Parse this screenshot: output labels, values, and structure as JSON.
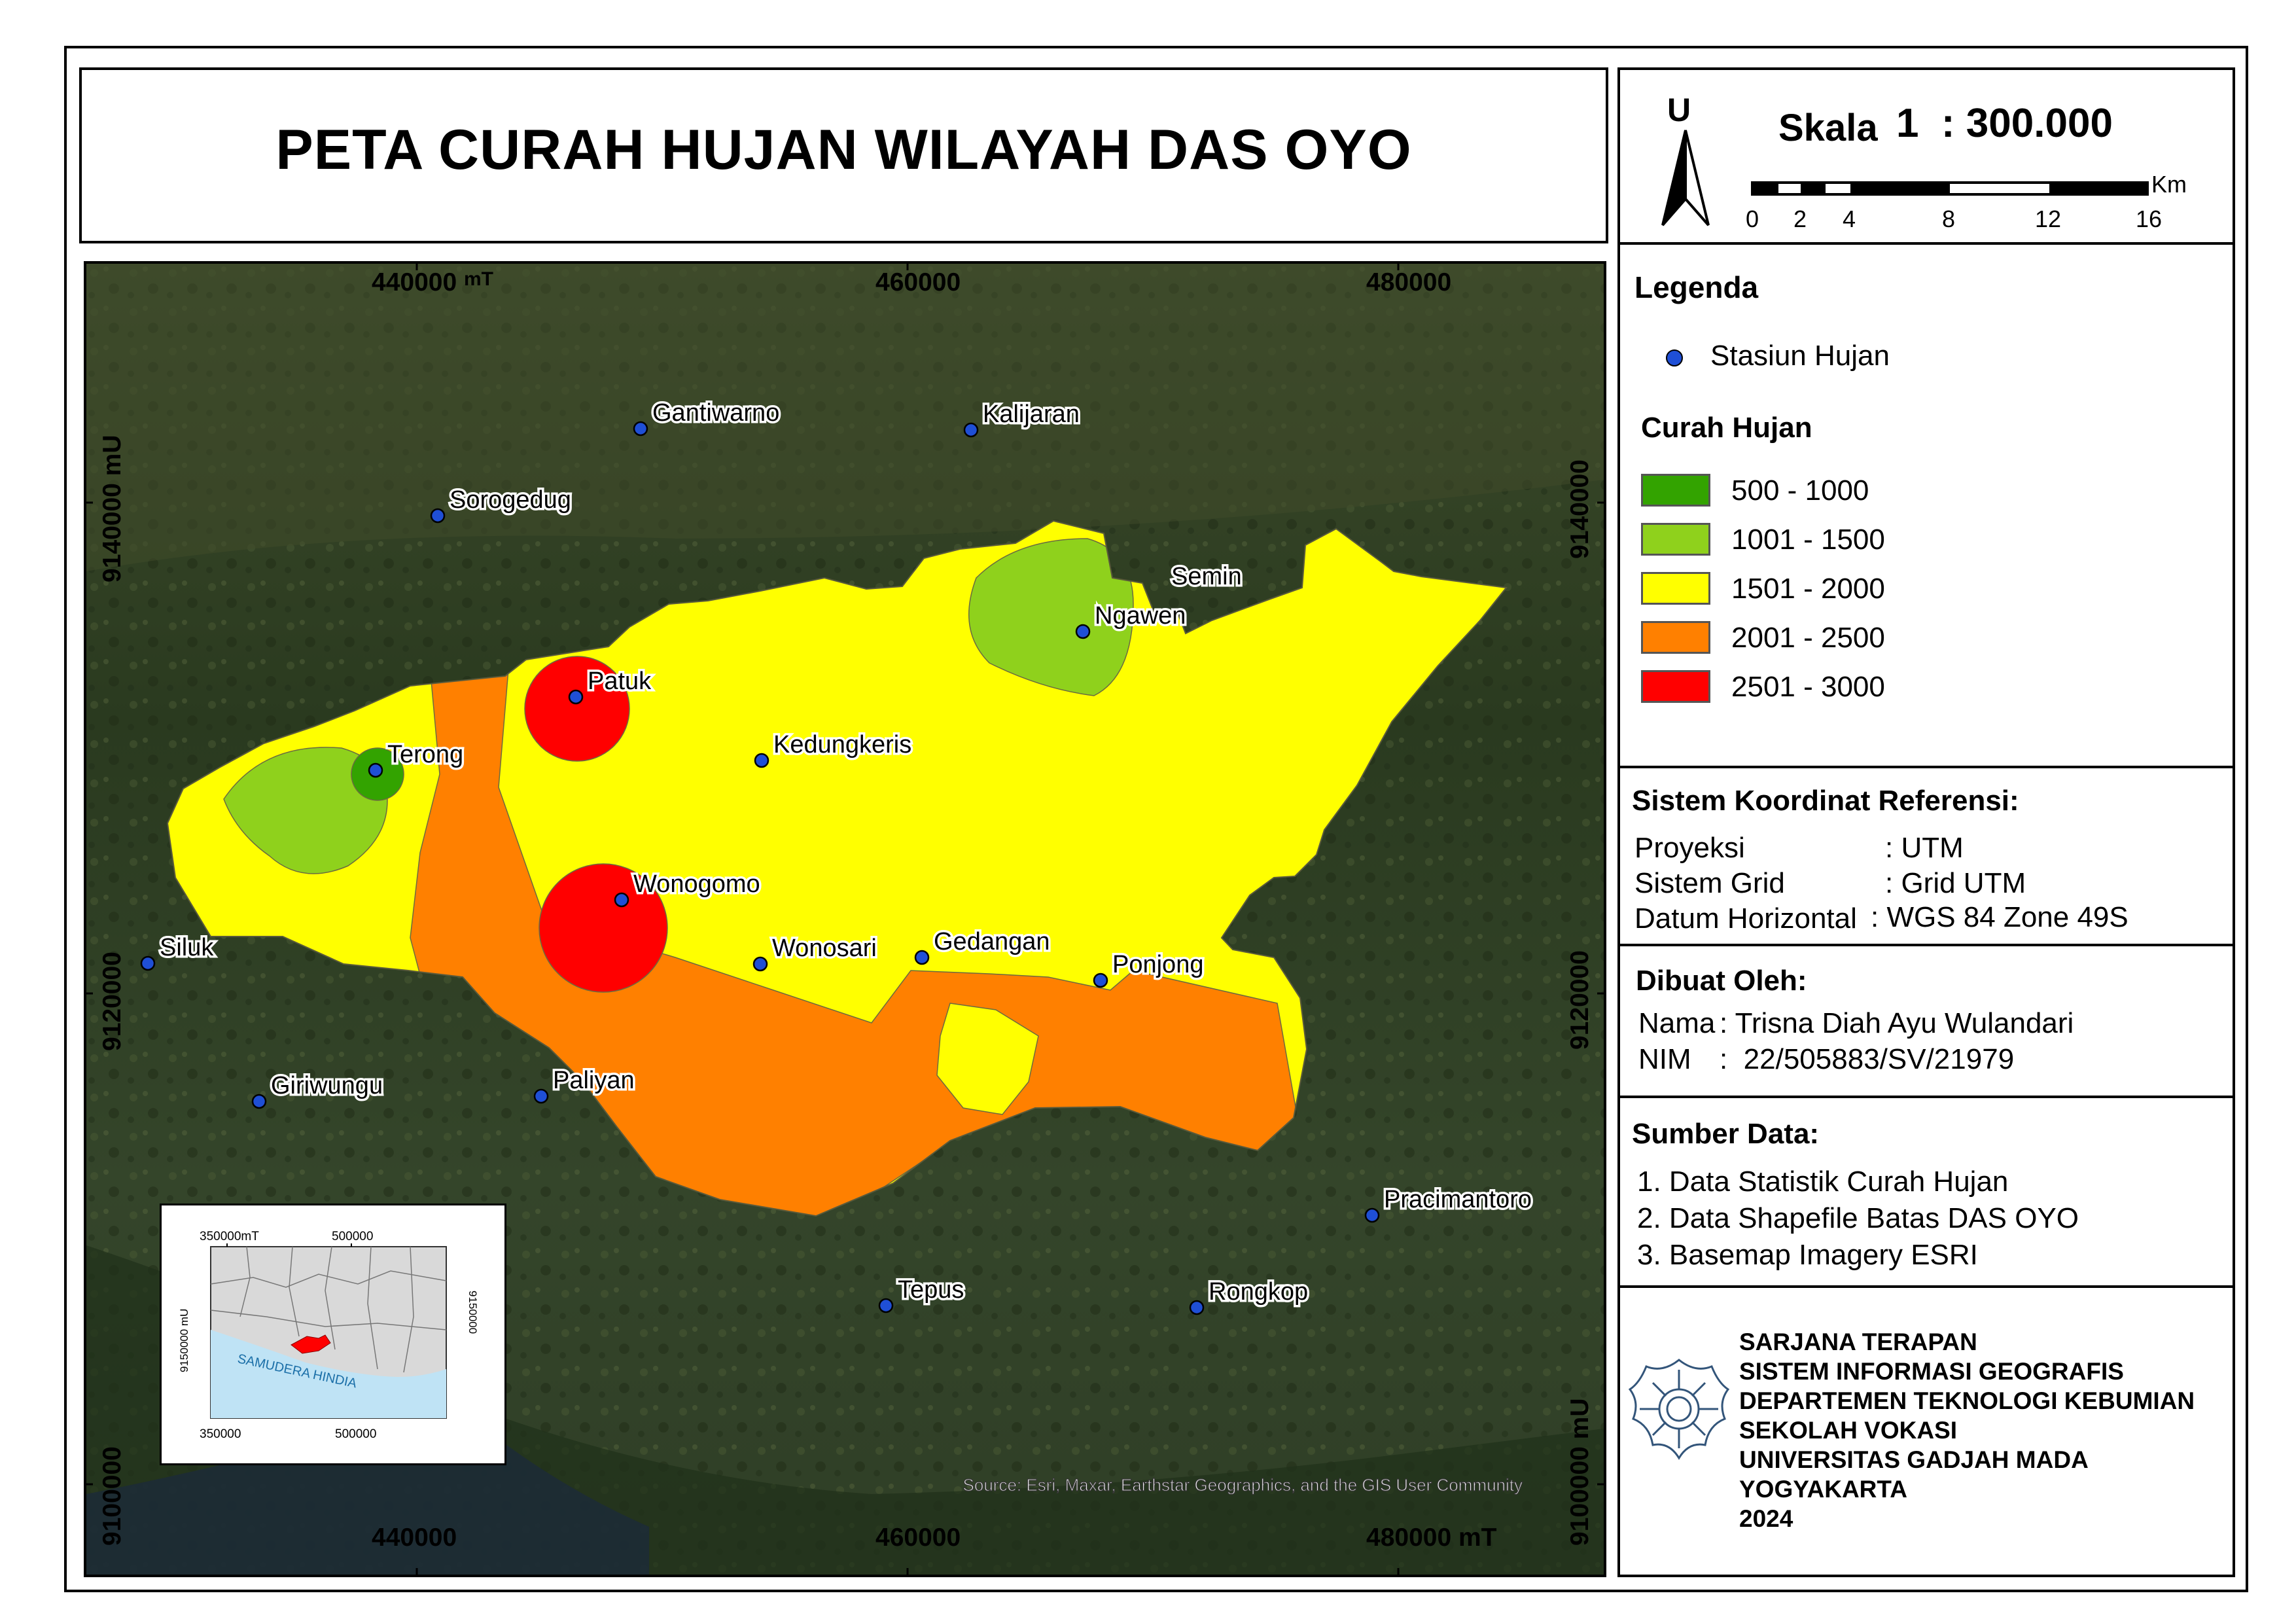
{
  "title": "PETA CURAH HUJAN WILAYAH DAS OYO",
  "north_arrow": {
    "letter": "U"
  },
  "scale": {
    "label": "Skala",
    "ratio": "1  : 300.000",
    "unit": "Km",
    "ticks": [
      "0",
      "2",
      "4",
      "8",
      "12",
      "16"
    ]
  },
  "grid": {
    "top_x": [
      "440000",
      "460000",
      "480000"
    ],
    "top_first_suffix": "mT",
    "bottom_x": [
      "440000",
      "460000",
      "480000"
    ],
    "bottom_last_suffix": "mT",
    "left_y": [
      "9140000 mU",
      "9120000",
      "9100000"
    ],
    "right_y": [
      "9140000",
      "9120000",
      "9100000 mU"
    ]
  },
  "stations": [
    {
      "name": "Gantiwarno"
    },
    {
      "name": "Kalijaran"
    },
    {
      "name": "Sorogedug"
    },
    {
      "name": "Semin"
    },
    {
      "name": "Ngawen"
    },
    {
      "name": "Patuk"
    },
    {
      "name": "Kedungkeris"
    },
    {
      "name": "Terong"
    },
    {
      "name": "Wonogomo"
    },
    {
      "name": "Siluk"
    },
    {
      "name": "Gedangan"
    },
    {
      "name": "Wonosari"
    },
    {
      "name": "Ponjong"
    },
    {
      "name": "Giriwungu"
    },
    {
      "name": "Paliyan"
    },
    {
      "name": "Pracimantoro"
    },
    {
      "name": "Tepus"
    },
    {
      "name": "Rongkop"
    }
  ],
  "attribution": "Source: Esri, Maxar, Earthstar Geographics, and the GIS User Community",
  "inset": {
    "top_labels": [
      "350000mT",
      "500000"
    ],
    "bottom_labels": [
      "350000",
      "500000"
    ],
    "left_label": "9150000 mU",
    "right_label": "9150000",
    "sea_label": "SAMUDERA HINDIA"
  },
  "legend": {
    "title": "Legenda",
    "station_label": "Stasiun Hujan",
    "rain_title": "Curah Hujan",
    "classes": [
      {
        "label": "500 - 1000",
        "color": "#33a300"
      },
      {
        "label": "1001 - 1500",
        "color": "#8fd11c"
      },
      {
        "label": "1501 - 2000",
        "color": "#ffff00"
      },
      {
        "label": "2001 - 2500",
        "color": "#ff8000"
      },
      {
        "label": "2501 - 3000",
        "color": "#ff0000"
      }
    ]
  },
  "crs": {
    "title": "Sistem Koordinat Referensi:",
    "rows": [
      {
        "key": "Proyeksi",
        "value": ": UTM"
      },
      {
        "key": "Sistem Grid",
        "value": ": Grid UTM"
      },
      {
        "key": "Datum Horizontal",
        "value": ": WGS 84 Zone 49S"
      }
    ]
  },
  "author": {
    "title": "Dibuat Oleh:",
    "name_key": "Nama",
    "name_value": ": Trisna Diah Ayu Wulandari",
    "nim_key": "NIM",
    "nim_value": ":  22/505883/SV/21979"
  },
  "sources": {
    "title": "Sumber Data:",
    "items": [
      "1. Data Statistik Curah Hujan",
      "2. Data Shapefile Batas DAS OYO",
      "3. Basemap Imagery ESRI"
    ]
  },
  "institution": {
    "lines": [
      "SARJANA TERAPAN",
      "SISTEM INFORMASI GEOGRAFIS",
      "DEPARTEMEN TEKNOLOGI KEBUMIAN",
      "SEKOLAH VOKASI",
      "UNIVERSITAS GADJAH MADA",
      "YOGYAKARTA",
      "2024"
    ]
  },
  "colors": {
    "station_dot": "#1f4fd6",
    "basemap_dark": "#2c3a22",
    "sea": "#bfe3f5"
  }
}
